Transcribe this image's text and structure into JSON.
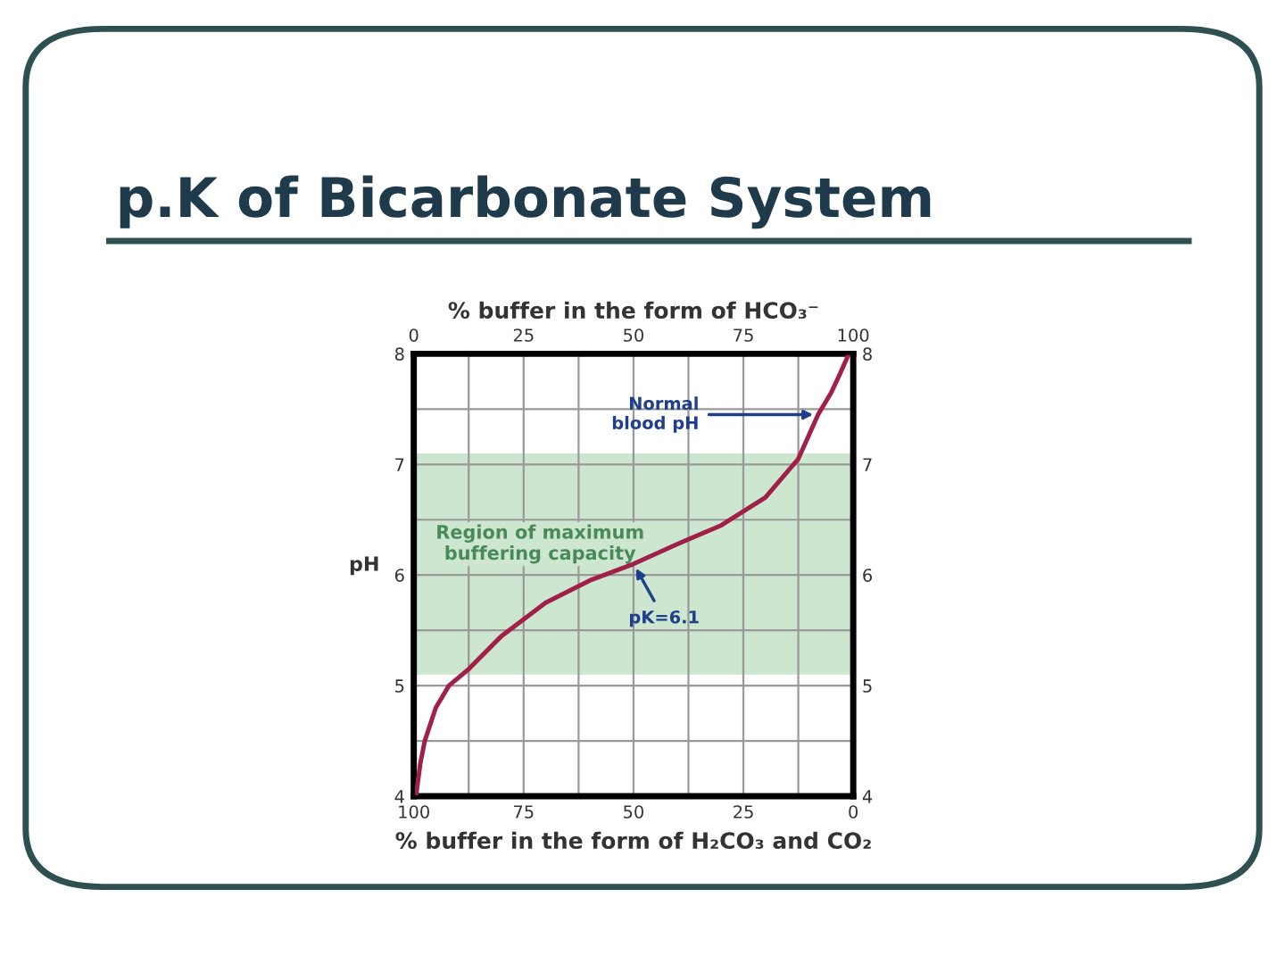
{
  "chart_data": {
    "type": "line",
    "title": "p.K of Bicarbonate System",
    "xlabel": "% buffer in the form of H₂CO₃ and CO₂",
    "x2label": "% buffer in the form of HCO₃⁻",
    "ylabel": "pH",
    "xlim": [
      100,
      0
    ],
    "xticks": [
      100,
      {
        "value": 87.5,
        "label": null
      },
      75,
      {
        "value": 62.5,
        "label": null
      },
      50,
      {
        "value": 37.5,
        "label": null
      },
      25,
      {
        "value": 12.5,
        "label": null
      },
      0
    ],
    "x2lim": [
      0,
      100
    ],
    "x2ticks": [
      0,
      25,
      50,
      75,
      100
    ],
    "ylim": [
      4,
      8
    ],
    "yticks": [
      4,
      {
        "value": 4.5,
        "label": null
      },
      5,
      {
        "value": 5.5,
        "label": null
      },
      6,
      {
        "value": 6.5,
        "label": null
      },
      7,
      {
        "value": 7.5,
        "label": null
      },
      8
    ],
    "y2lim": [
      4,
      8
    ],
    "y2ticks": [
      4,
      5,
      6,
      7,
      8
    ],
    "grid": true,
    "marker": "none",
    "line_style": "solid",
    "x": [
      99.5,
      98.5,
      97.5,
      95,
      92,
      87.5,
      80,
      70,
      60,
      50,
      40,
      30,
      20,
      12.5,
      8,
      5,
      3,
      1
    ],
    "series": [
      {
        "color": "#a0204a",
        "values": [
          4.0,
          4.3,
          4.5,
          4.8,
          5.0,
          5.15,
          5.45,
          5.75,
          5.95,
          6.1,
          6.28,
          6.45,
          6.7,
          7.05,
          7.45,
          7.65,
          7.82,
          8.0
        ]
      }
    ],
    "bands": [
      {
        "axis": "y",
        "from": 5.1,
        "to": 7.1,
        "label": "Region of maximum buffering capacity",
        "color": "#cce6cf"
      }
    ],
    "annotations": [
      {
        "text": "Normal blood pH",
        "x": 8,
        "y": 7.45
      },
      {
        "text": "pK=6.1",
        "x": 50,
        "y": 6.1
      }
    ]
  }
}
